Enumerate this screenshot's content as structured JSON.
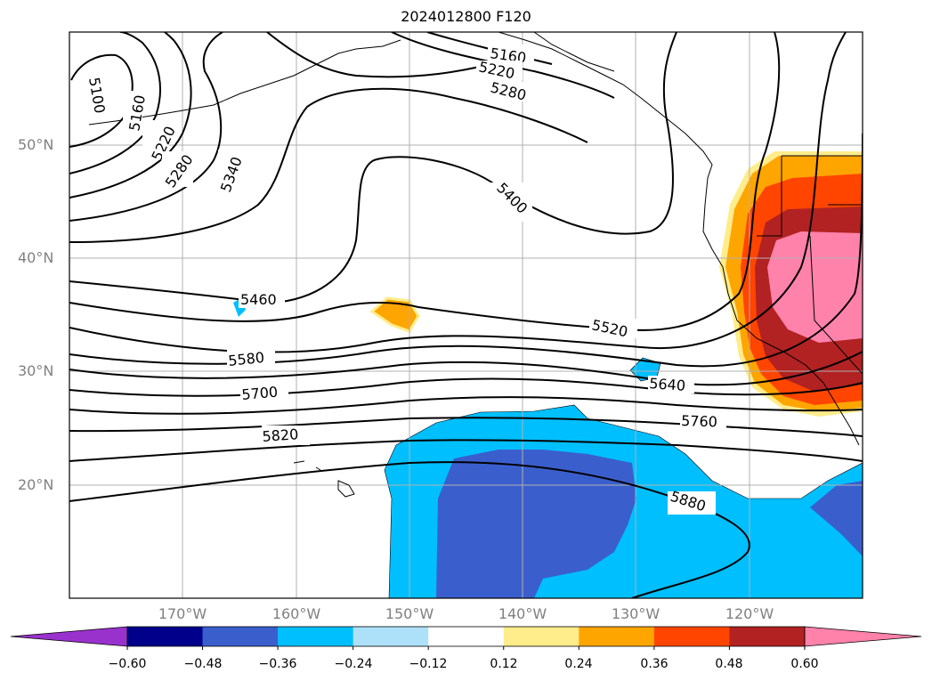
{
  "title": "2024012800 F120",
  "lat_labels": [
    "50°N",
    "40°N",
    "30°N",
    "20°N"
  ],
  "lon_labels": [
    "170°W",
    "160°W",
    "150°W",
    "140°W",
    "130°W",
    "120°W"
  ],
  "contour_labels": [
    "5100",
    "5160",
    "5220",
    "5280",
    "5340",
    "5160",
    "5220",
    "5280",
    "5400",
    "5460",
    "5520",
    "5580",
    "5640",
    "5700",
    "5760",
    "5820",
    "5880"
  ],
  "colorbar": {
    "ticks": [
      "−0.60",
      "−0.48",
      "−0.36",
      "−0.24",
      "−0.12",
      "0.12",
      "0.24",
      "0.36",
      "0.48",
      "0.60"
    ],
    "colors": [
      "#9932CC",
      "#00008B",
      "#3A5FCD",
      "#00BFFF",
      "#ADE1FA",
      "#FFFFFF",
      "#FFEC8B",
      "#FFA500",
      "#FF4500",
      "#B22222",
      "#FF82AB"
    ]
  }
}
